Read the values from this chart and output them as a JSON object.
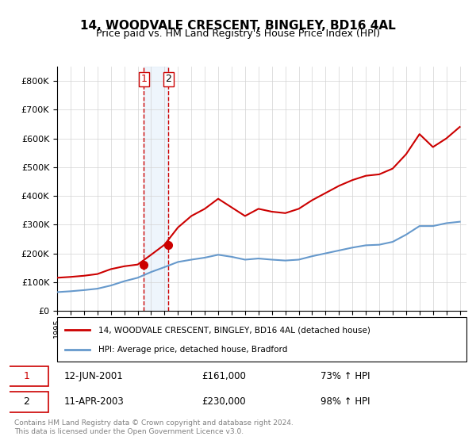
{
  "title": "14, WOODVALE CRESCENT, BINGLEY, BD16 4AL",
  "subtitle": "Price paid vs. HM Land Registry's House Price Index (HPI)",
  "legend_line1": "14, WOODVALE CRESCENT, BINGLEY, BD16 4AL (detached house)",
  "legend_line2": "HPI: Average price, detached house, Bradford",
  "transaction1_label": "1",
  "transaction1_date": "12-JUN-2001",
  "transaction1_price": "£161,000",
  "transaction1_hpi": "73% ↑ HPI",
  "transaction2_label": "2",
  "transaction2_date": "11-APR-2003",
  "transaction2_price": "£230,000",
  "transaction2_hpi": "98% ↑ HPI",
  "footer": "Contains HM Land Registry data © Crown copyright and database right 2024.\nThis data is licensed under the Open Government Licence v3.0.",
  "red_color": "#cc0000",
  "blue_color": "#6699cc",
  "shading_color": "#d0e4f7",
  "ylim": [
    0,
    850000
  ],
  "yticks": [
    0,
    100000,
    200000,
    300000,
    400000,
    500000,
    600000,
    700000,
    800000
  ],
  "ytick_labels": [
    "£0",
    "£100K",
    "£200K",
    "£300K",
    "£400K",
    "£500K",
    "£600K",
    "£700K",
    "£800K"
  ],
  "hpi_years": [
    1995,
    1996,
    1997,
    1998,
    1999,
    2000,
    2001,
    2002,
    2003,
    2004,
    2005,
    2006,
    2007,
    2008,
    2009,
    2010,
    2011,
    2012,
    2013,
    2014,
    2015,
    2016,
    2017,
    2018,
    2019,
    2020,
    2021,
    2022,
    2023,
    2024,
    2025
  ],
  "hpi_values": [
    65000,
    68000,
    72000,
    77000,
    88000,
    103000,
    115000,
    135000,
    152000,
    170000,
    178000,
    185000,
    195000,
    188000,
    178000,
    182000,
    178000,
    175000,
    178000,
    190000,
    200000,
    210000,
    220000,
    228000,
    230000,
    240000,
    265000,
    295000,
    295000,
    305000,
    310000
  ],
  "price_years": [
    1995,
    1996,
    1997,
    1998,
    1999,
    2000,
    2001,
    2002,
    2003,
    2004,
    2005,
    2006,
    2007,
    2008,
    2009,
    2010,
    2011,
    2012,
    2013,
    2014,
    2015,
    2016,
    2017,
    2018,
    2019,
    2020,
    2021,
    2022,
    2023,
    2024,
    2025
  ],
  "price_values": [
    115000,
    118000,
    122000,
    128000,
    145000,
    155000,
    161000,
    195000,
    230000,
    290000,
    330000,
    355000,
    390000,
    360000,
    330000,
    355000,
    345000,
    340000,
    355000,
    385000,
    410000,
    435000,
    455000,
    470000,
    475000,
    495000,
    545000,
    615000,
    570000,
    600000,
    640000
  ],
  "sale1_year": 2001.45,
  "sale1_price": 161000,
  "sale2_year": 2003.28,
  "sale2_price": 230000,
  "shade_x1": 2001.45,
  "shade_x2": 2003.28,
  "xmin": 1995,
  "xmax": 2025.5
}
